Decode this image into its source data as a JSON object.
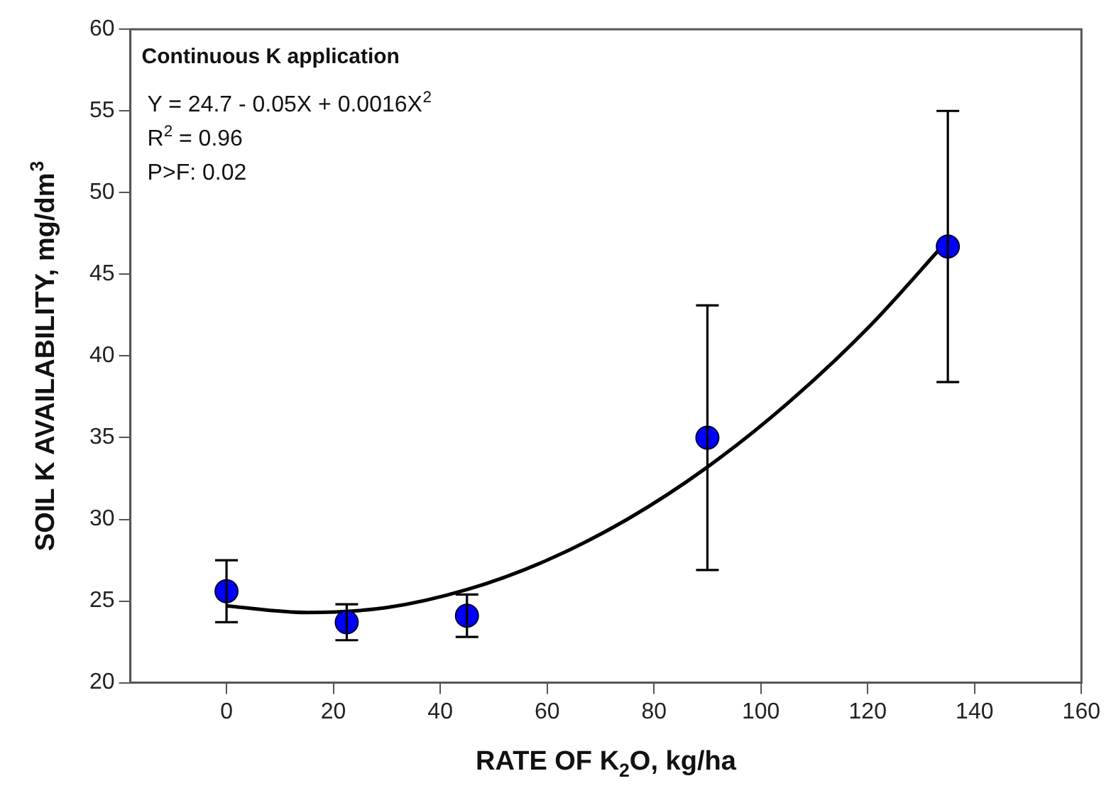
{
  "chart_data": {
    "type": "scatter",
    "title": "Continuous K application",
    "xlabel": "RATE OF K$_{2}$O, kg/ha",
    "ylabel": "SOIL K AVAILABILITY, mg/dm$^{3}$",
    "annotations": [
      "Y = 24.7 - 0.05X + 0.0016X$^{2}$",
      "R$^{2}$ = 0.96",
      "P>F: 0.02"
    ],
    "series": [
      {
        "type": "scatter",
        "color": "#0000ff",
        "marker": "circle",
        "x": [
          0,
          22.5,
          45,
          90,
          135
        ],
        "values": [
          25.6,
          23.7,
          24.1,
          35,
          46.7
        ],
        "errors": [
          [
            23.7,
            27.5
          ],
          [
            22.6,
            24.8
          ],
          [
            22.8,
            25.4
          ],
          [
            26.9,
            43.1
          ],
          [
            38.4,
            55
          ]
        ]
      },
      {
        "type": "line",
        "color": "#000000",
        "marker": "none",
        "line_style": "solid",
        "x": [
          0,
          15,
          30,
          45,
          60,
          75,
          90,
          105,
          120,
          135
        ],
        "values": [
          24.7,
          24.3,
          24.6,
          25.7,
          27.5,
          30,
          33.2,
          37.1,
          41.7,
          47.1
        ]
      }
    ],
    "xlim": [
      -18,
      160
    ],
    "xticks": [
      0,
      20,
      40,
      60,
      80,
      100,
      120,
      140,
      160
    ],
    "ylim": [
      20,
      60
    ],
    "yticks": [
      20,
      25,
      30,
      35,
      40,
      45,
      50,
      55,
      60
    ],
    "grid": false,
    "legend": false
  }
}
